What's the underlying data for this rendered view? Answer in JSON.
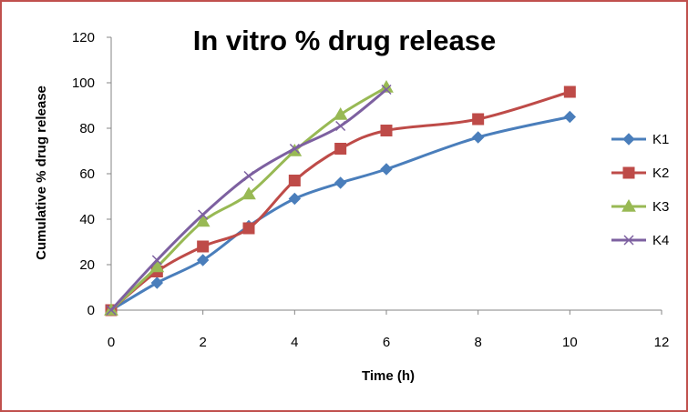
{
  "chart_data": {
    "type": "line",
    "title": "In vitro % drug release",
    "xlabel": "Time (h)",
    "ylabel": "Cumulative % drug release",
    "xlim": [
      0,
      12
    ],
    "ylim": [
      0,
      120
    ],
    "xticks": [
      "0",
      "2",
      "4",
      "6",
      "8",
      "10",
      "12"
    ],
    "yticks": [
      "0",
      "20",
      "40",
      "60",
      "80",
      "100",
      "120"
    ],
    "grid": false,
    "legend_position": "right",
    "smooth": true,
    "series": [
      {
        "name": "K1",
        "color": "#4a7ebb",
        "marker": "diamond",
        "x": [
          0,
          1,
          2,
          3,
          4,
          5,
          6,
          8,
          10
        ],
        "y": [
          0,
          12,
          22,
          37,
          49,
          56,
          62,
          76,
          85
        ]
      },
      {
        "name": "K2",
        "color": "#be4b48",
        "marker": "square",
        "x": [
          0,
          1,
          2,
          3,
          4,
          5,
          6,
          8,
          10
        ],
        "y": [
          0,
          17,
          28,
          36,
          57,
          71,
          79,
          84,
          96
        ]
      },
      {
        "name": "K3",
        "color": "#98b954",
        "marker": "triangle",
        "x": [
          0,
          1,
          2,
          3,
          4,
          5,
          6
        ],
        "y": [
          0,
          19,
          39,
          51,
          70,
          86,
          98
        ]
      },
      {
        "name": "K4",
        "color": "#7d60a0",
        "marker": "x",
        "x": [
          0,
          1,
          2,
          3,
          4,
          5,
          6
        ],
        "y": [
          0,
          22,
          42,
          59,
          71,
          81,
          97
        ]
      }
    ]
  }
}
